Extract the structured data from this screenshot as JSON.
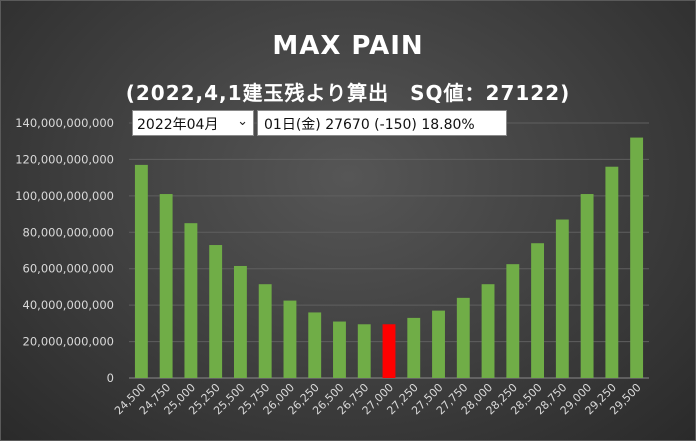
{
  "header": {
    "title": "MAX PAIN",
    "subtitle": "(2022,4,1建玉残より算出　SQ値：27122)"
  },
  "controls": {
    "month_value": "2022年04月",
    "day_info": "01日(金) 27670 (-150) 18.80%"
  },
  "colors": {
    "bar": "#70ad47",
    "highlight": "#ff0000",
    "text": "#ffffff",
    "axis_text": "#d9d9d9",
    "gridline": "#5f5f5f"
  },
  "chart_data": {
    "type": "bar",
    "title": "MAX PAIN",
    "subtitle": "(2022,4,1建玉残より算出　SQ値：27122)",
    "categories": [
      "24,500",
      "24,750",
      "25,000",
      "25,250",
      "25,500",
      "25,750",
      "26,000",
      "26,250",
      "26,500",
      "26,750",
      "27,000",
      "27,250",
      "27,500",
      "27,750",
      "28,000",
      "28,250",
      "28,500",
      "28,750",
      "29,000",
      "29,250",
      "29,500"
    ],
    "values": [
      117000000000,
      101000000000,
      85000000000,
      73000000000,
      61500000000,
      51500000000,
      42500000000,
      36000000000,
      31000000000,
      29500000000,
      29500000000,
      33000000000,
      37000000000,
      44000000000,
      51500000000,
      62500000000,
      74000000000,
      87000000000,
      101000000000,
      116000000000,
      132000000000
    ],
    "highlight_category": "27,000",
    "ylim": [
      0,
      140000000000
    ],
    "yticks": [
      0,
      20000000000,
      40000000000,
      60000000000,
      80000000000,
      100000000000,
      120000000000,
      140000000000
    ],
    "ytick_labels": [
      "0",
      "20,000,000,000",
      "40,000,000,000",
      "60,000,000,000",
      "80,000,000,000",
      "100,000,000,000",
      "120,000,000,000",
      "140,000,000,000"
    ],
    "grid": true,
    "legend": "none",
    "xlabel": "",
    "ylabel": ""
  }
}
